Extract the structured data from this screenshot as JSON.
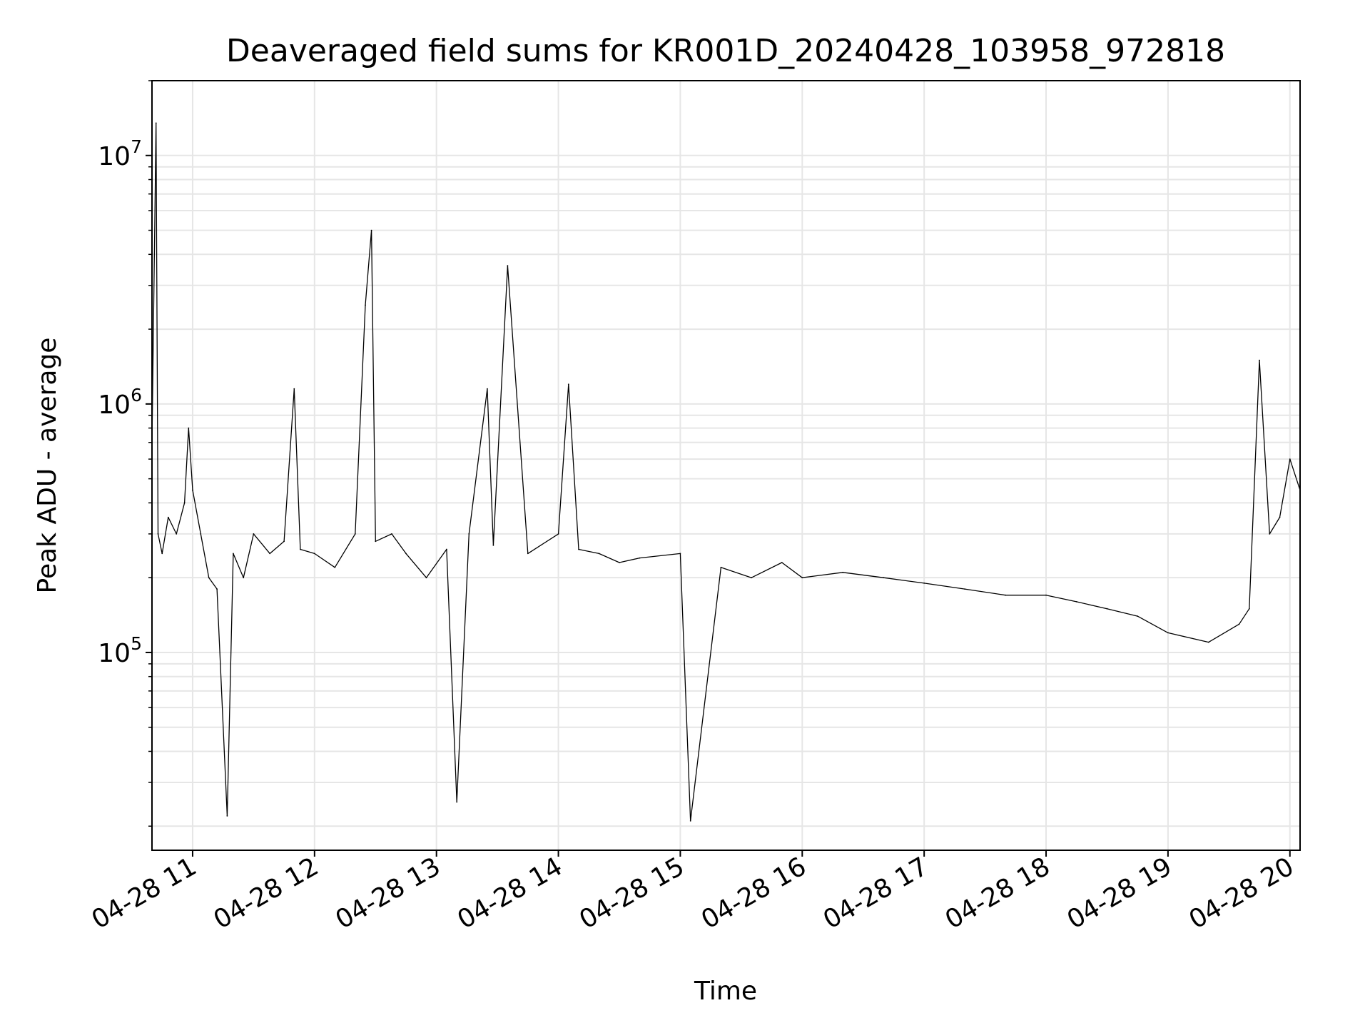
{
  "chart_data": {
    "type": "line",
    "title": "Deaveraged field sums for KR001D_20240428_103958_972818",
    "xlabel": "Time",
    "ylabel": "Peak ADU - average",
    "x_ticks": [
      "04-28 11",
      "04-28 12",
      "04-28 13",
      "04-28 14",
      "04-28 15",
      "04-28 16",
      "04-28 17",
      "04-28 18",
      "04-28 19",
      "04-28 20"
    ],
    "xlim": [
      "2024-04-28 10:40",
      "2024-04-28 20:05"
    ],
    "yscale": "log",
    "ylim": [
      16000,
      20000000
    ],
    "y_ticks": [
      {
        "value": 100000,
        "base": "10",
        "exp": "5"
      },
      {
        "value": 1000000,
        "base": "10",
        "exp": "6"
      },
      {
        "value": 10000000,
        "base": "10",
        "exp": "7"
      }
    ],
    "grid": true,
    "line_color": "#000000",
    "grid_color": "#e6e6e6",
    "series": [
      {
        "x": [
          "2024-04-28 10:40",
          "2024-04-28 10:42",
          "2024-04-28 10:43",
          "2024-04-28 10:45",
          "2024-04-28 10:48",
          "2024-04-28 10:52",
          "2024-04-28 10:56",
          "2024-04-28 10:58",
          "2024-04-28 11:00",
          "2024-04-28 11:04",
          "2024-04-28 11:08",
          "2024-04-28 11:12",
          "2024-04-28 11:17",
          "2024-04-28 11:20",
          "2024-04-28 11:25",
          "2024-04-28 11:30",
          "2024-04-28 11:38",
          "2024-04-28 11:45",
          "2024-04-28 11:50",
          "2024-04-28 11:53",
          "2024-04-28 12:00",
          "2024-04-28 12:10",
          "2024-04-28 12:20",
          "2024-04-28 12:25",
          "2024-04-28 12:28",
          "2024-04-28 12:30",
          "2024-04-28 12:38",
          "2024-04-28 12:45",
          "2024-04-28 12:55",
          "2024-04-28 13:05",
          "2024-04-28 13:10",
          "2024-04-28 13:16",
          "2024-04-28 13:25",
          "2024-04-28 13:28",
          "2024-04-28 13:35",
          "2024-04-28 13:45",
          "2024-04-28 14:00",
          "2024-04-28 14:05",
          "2024-04-28 14:10",
          "2024-04-28 14:20",
          "2024-04-28 14:30",
          "2024-04-28 14:40",
          "2024-04-28 15:00",
          "2024-04-28 15:05",
          "2024-04-28 15:20",
          "2024-04-28 15:35",
          "2024-04-28 15:50",
          "2024-04-28 16:00",
          "2024-04-28 16:20",
          "2024-04-28 16:40",
          "2024-04-28 17:00",
          "2024-04-28 17:20",
          "2024-04-28 17:40",
          "2024-04-28 18:00",
          "2024-04-28 18:15",
          "2024-04-28 18:30",
          "2024-04-28 18:45",
          "2024-04-28 19:00",
          "2024-04-28 19:20",
          "2024-04-28 19:35",
          "2024-04-28 19:40",
          "2024-04-28 19:45",
          "2024-04-28 19:50",
          "2024-04-28 19:55",
          "2024-04-28 20:00",
          "2024-04-28 20:05"
        ],
        "y": [
          700000,
          13500000,
          300000,
          250000,
          350000,
          300000,
          400000,
          800000,
          450000,
          300000,
          200000,
          180000,
          22000,
          250000,
          200000,
          300000,
          250000,
          280000,
          1150000,
          260000,
          250000,
          220000,
          300000,
          2500000,
          5000000,
          280000,
          300000,
          250000,
          200000,
          260000,
          25000,
          300000,
          1150000,
          270000,
          3600000,
          250000,
          300000,
          1200000,
          260000,
          250000,
          230000,
          240000,
          250000,
          21000,
          220000,
          200000,
          230000,
          200000,
          210000,
          200000,
          190000,
          180000,
          170000,
          170000,
          160000,
          150000,
          140000,
          120000,
          110000,
          130000,
          150000,
          1500000,
          300000,
          350000,
          600000,
          450000
        ]
      }
    ]
  }
}
